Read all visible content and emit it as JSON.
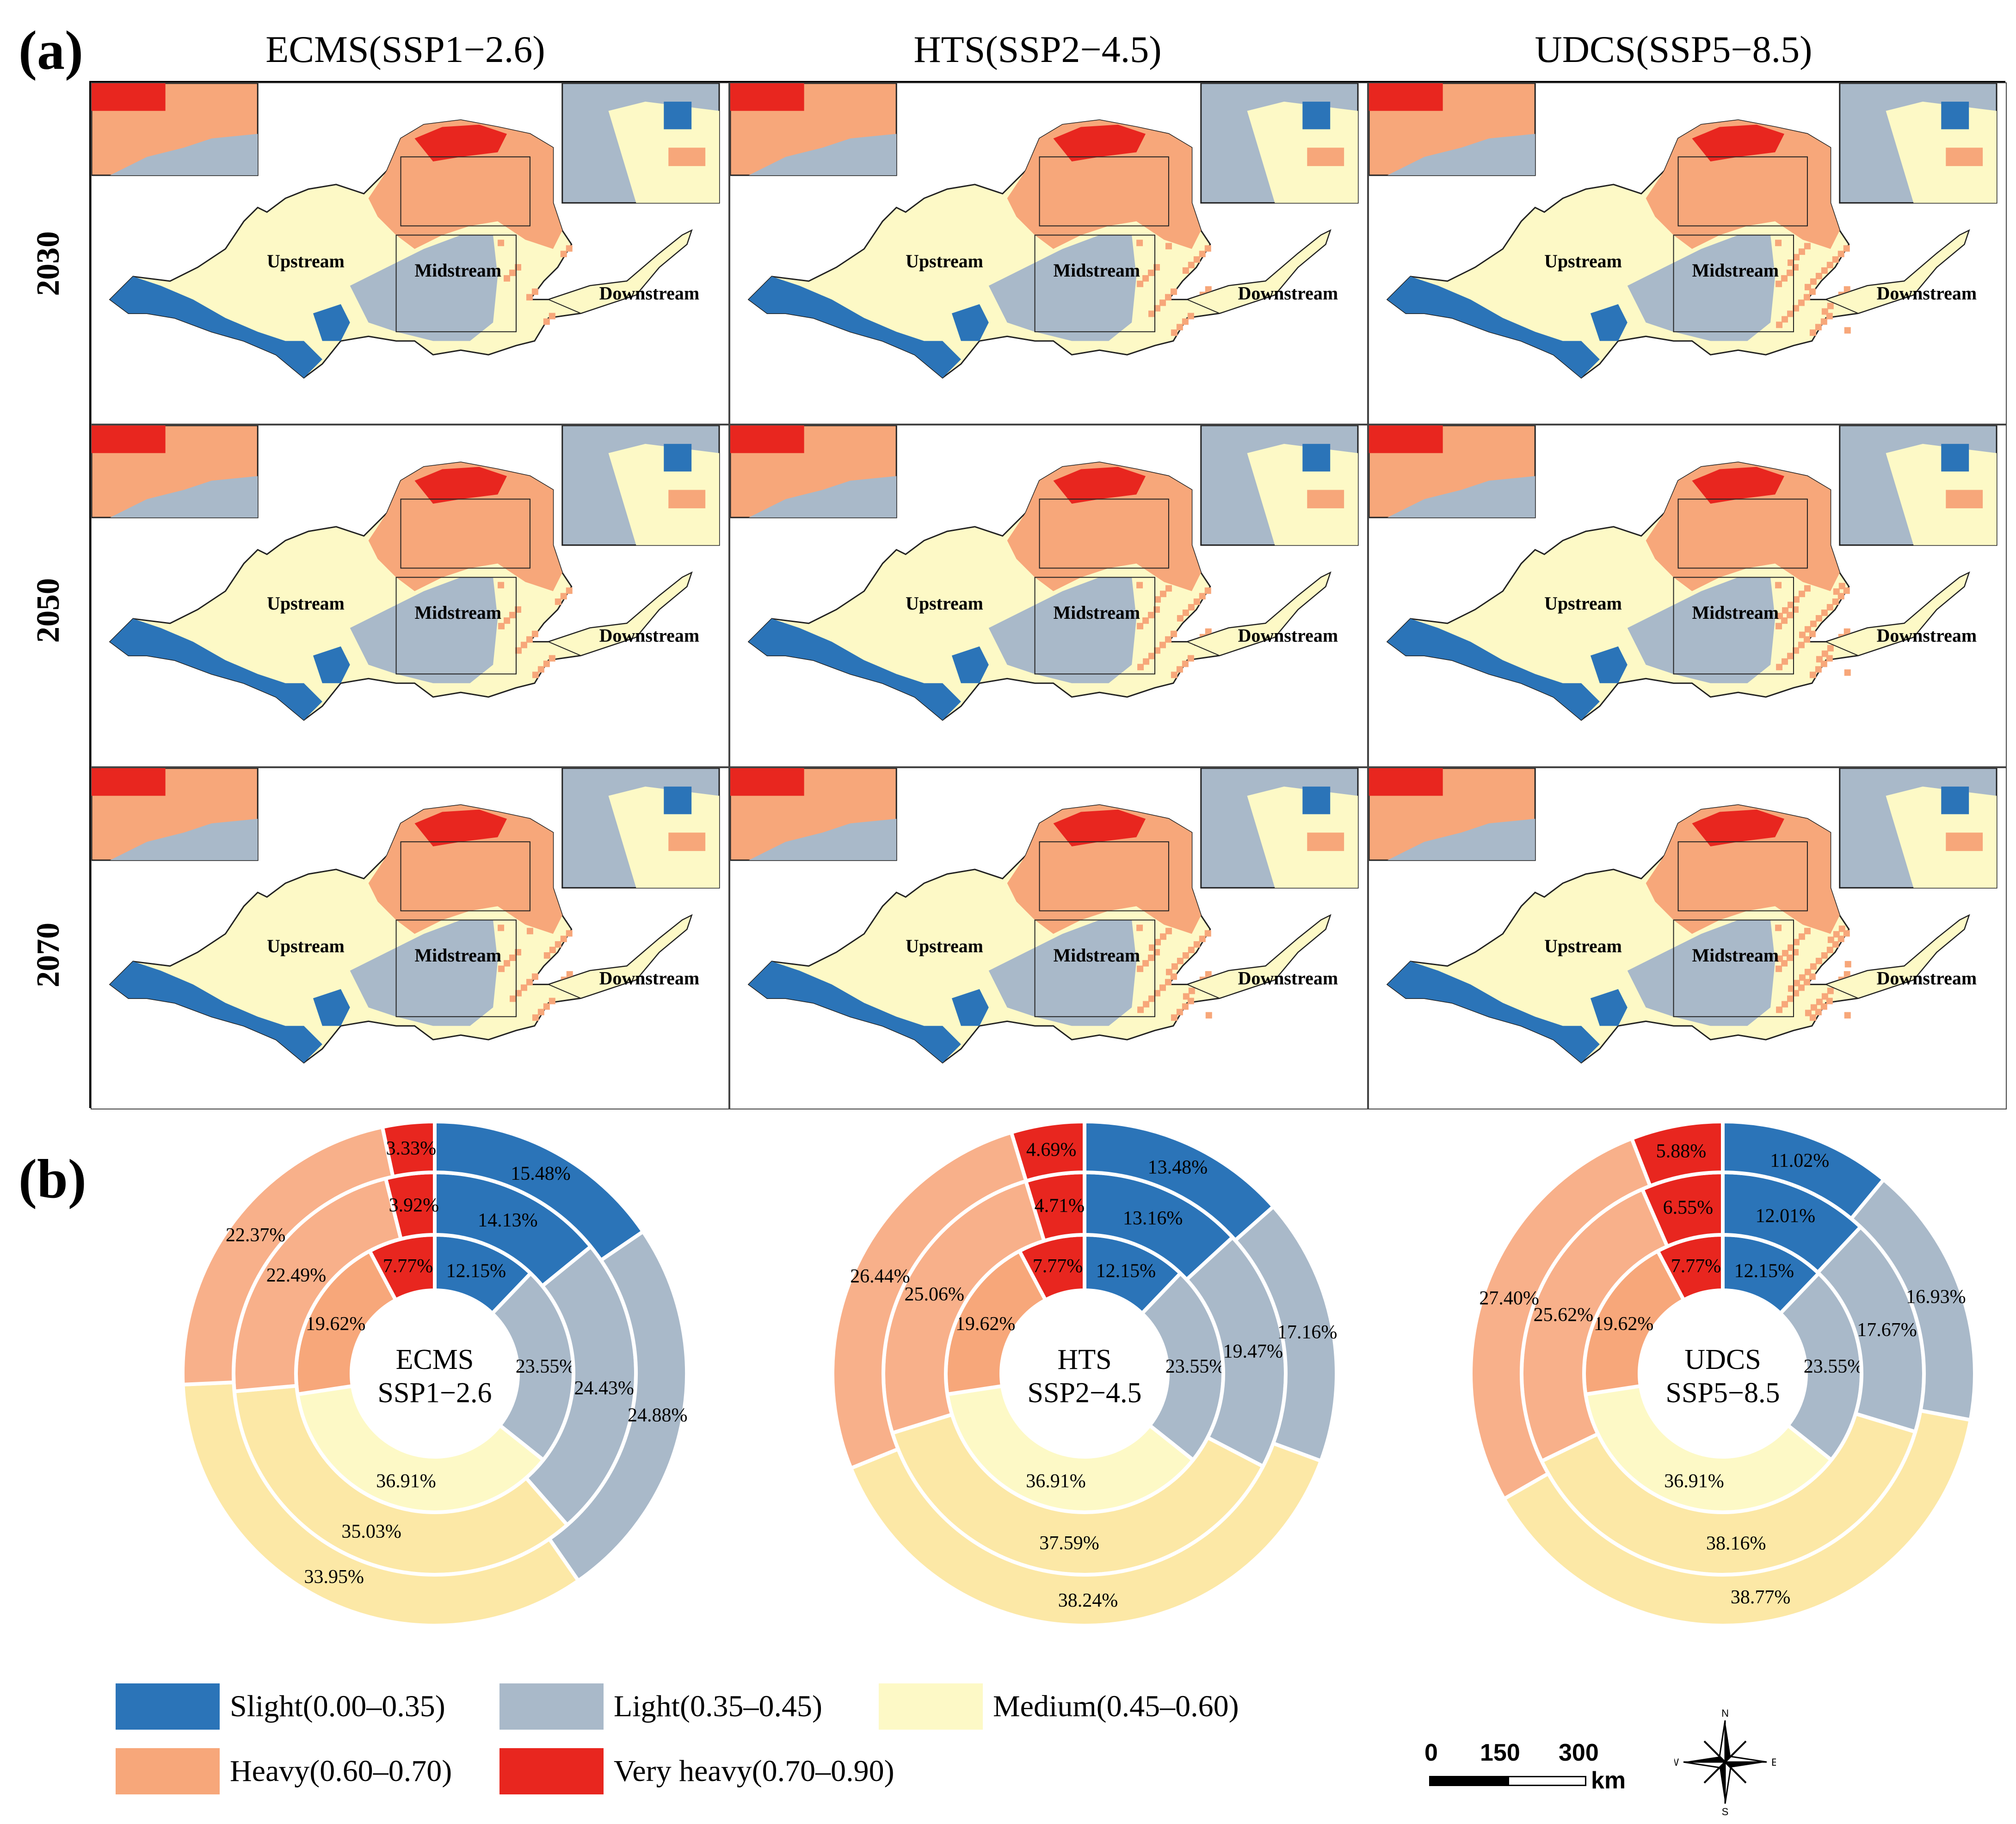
{
  "panel_a_label": "(a)",
  "panel_b_label": "(b)",
  "columns": [
    {
      "title": "ECMS(SSP1−2.6)"
    },
    {
      "title": "HTS(SSP2−4.5)"
    },
    {
      "title": "UDCS(SSP5−8.5)"
    }
  ],
  "rows": [
    {
      "year": "2030"
    },
    {
      "year": "2050"
    },
    {
      "year": "2070"
    }
  ],
  "map_labels": {
    "upstream": "Upstream",
    "midstream": "Midstream",
    "downstream": "Downstream"
  },
  "colors": {
    "slight": "#2b74b8",
    "light": "#a9b9c9",
    "medium": "#fdf9c6",
    "heavy": "#f7a77a",
    "very_heavy": "#e8261f",
    "ring_medium": "#fce8a6",
    "ring_heavy": "#f8b08a"
  },
  "legend": [
    {
      "key": "slight",
      "label": "Slight(0.00–0.35)"
    },
    {
      "key": "light",
      "label": "Light(0.35–0.45)"
    },
    {
      "key": "medium",
      "label": "Medium(0.45–0.60)"
    },
    {
      "key": "heavy",
      "label": "Heavy(0.60–0.70)"
    },
    {
      "key": "very_heavy",
      "label": "Very heavy(0.70–0.90)"
    }
  ],
  "scale_bar": {
    "ticks": [
      "0",
      "150",
      "300"
    ],
    "unit": "km"
  },
  "north_arrow": {
    "n": "N",
    "s": "S",
    "e": "E",
    "w": "W"
  },
  "chart_data": [
    {
      "type": "pie",
      "center_label": [
        "ECMS",
        "SSP1−2.6"
      ],
      "categories": [
        "Slight",
        "Light",
        "Medium",
        "Heavy",
        "Very heavy"
      ],
      "series": [
        {
          "values": [
            12.15,
            23.55,
            36.91,
            19.62,
            7.77
          ],
          "labels": [
            "12.15%",
            "23.55%",
            "36.91%",
            "19.62%",
            "7.77%"
          ]
        },
        {
          "values": [
            14.13,
            24.43,
            35.03,
            22.49,
            3.92
          ],
          "labels": [
            "14.13%",
            "24.43%",
            "35.03%",
            "22.49%",
            "3.92%"
          ]
        },
        {
          "values": [
            15.48,
            24.88,
            33.95,
            22.37,
            3.33
          ],
          "labels": [
            "15.48%",
            "24.88%",
            "33.95%",
            "22.37%",
            "3.33%"
          ]
        }
      ]
    },
    {
      "type": "pie",
      "center_label": [
        "HTS",
        "SSP2−4.5"
      ],
      "categories": [
        "Slight",
        "Light",
        "Medium",
        "Heavy",
        "Very heavy"
      ],
      "series": [
        {
          "values": [
            12.15,
            23.55,
            36.91,
            19.62,
            7.77
          ],
          "labels": [
            "12.15%",
            "23.55%",
            "36.91%",
            "19.62%",
            "7.77%"
          ]
        },
        {
          "values": [
            13.16,
            19.47,
            37.59,
            25.06,
            4.71
          ],
          "labels": [
            "13.16%",
            "19.47%",
            "37.59%",
            "25.06%",
            "4.71%"
          ]
        },
        {
          "values": [
            13.48,
            17.16,
            38.24,
            26.44,
            4.69
          ],
          "labels": [
            "13.48%",
            "17.16%",
            "38.24%",
            "26.44%",
            "4.69%"
          ]
        }
      ]
    },
    {
      "type": "pie",
      "center_label": [
        "UDCS",
        "SSP5−8.5"
      ],
      "categories": [
        "Slight",
        "Light",
        "Medium",
        "Heavy",
        "Very heavy"
      ],
      "series": [
        {
          "values": [
            12.15,
            23.55,
            36.91,
            19.62,
            7.77
          ],
          "labels": [
            "12.15%",
            "23.55%",
            "36.91%",
            "19.62%",
            "7.77%"
          ]
        },
        {
          "values": [
            12.01,
            17.67,
            38.16,
            25.62,
            6.55
          ],
          "labels": [
            "12.01%",
            "17.67%",
            "38.16%",
            "25.62%",
            "6.55%"
          ]
        },
        {
          "values": [
            11.02,
            16.93,
            38.77,
            27.4,
            5.88
          ],
          "labels": [
            "11.02%",
            "16.93%",
            "38.77%",
            "27.40%",
            "5.88%"
          ]
        }
      ]
    }
  ]
}
